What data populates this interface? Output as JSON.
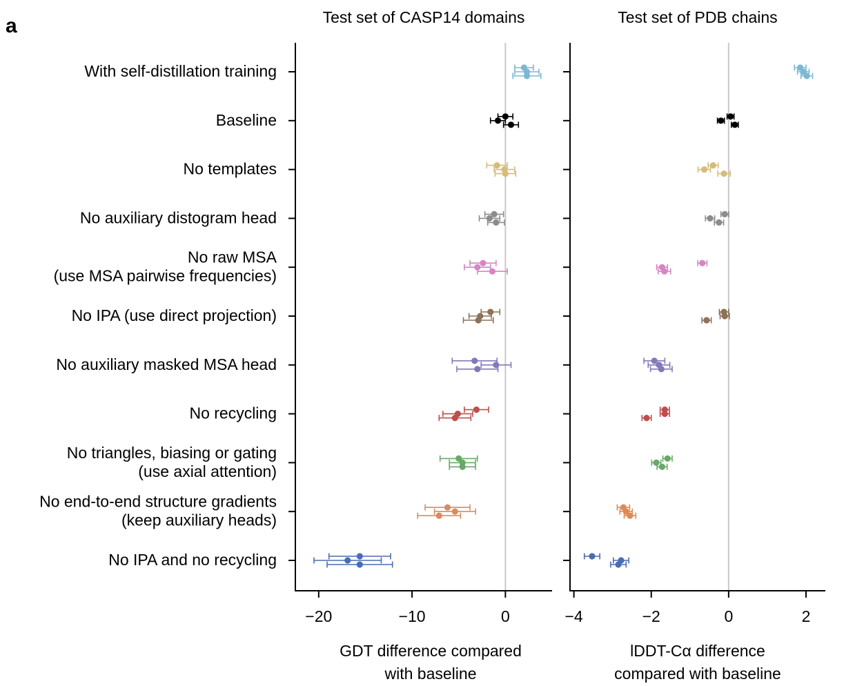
{
  "panel_letter": "a",
  "chart_data": {
    "type": "scatter",
    "categories": [
      "With self-distillation training",
      "Baseline",
      "No templates",
      "No auxiliary distogram head",
      "No raw MSA\n(use MSA pairwise frequencies)",
      "No IPA (use direct projection)",
      "No auxiliary masked MSA head",
      "No recycling",
      "No triangles, biasing or gating\n(use axial attention)",
      "No end-to-end structure gradients\n(keep auxiliary heads)",
      "No IPA and no recycling"
    ],
    "colors": [
      "#7ab8d4",
      "#000000",
      "#d4bd78",
      "#8c8c8c",
      "#d785c4",
      "#8c7258",
      "#8278ba",
      "#bf4d4d",
      "#68a86a",
      "#dd8a56",
      "#4a6cb4"
    ],
    "panels": [
      {
        "title": "Test set of CASP14 domains",
        "xlabel": "GDT difference compared\nwith baseline",
        "xlim": [
          -22.5,
          5
        ],
        "xticks": [
          -20,
          -10,
          0
        ],
        "xtick_labels": [
          "−20",
          "−10",
          "0"
        ],
        "reference_line": 0,
        "points": [
          [
            [
              2.0,
              1.0
            ],
            [
              2.3,
              1.3
            ],
            [
              2.3,
              1.5
            ]
          ],
          [
            [
              0.0,
              0.8
            ],
            [
              -0.8,
              0.8
            ],
            [
              0.6,
              0.8
            ]
          ],
          [
            [
              -0.9,
              1.1
            ],
            [
              -0.1,
              1.1
            ],
            [
              0.0,
              1.1
            ]
          ],
          [
            [
              -1.2,
              1.0
            ],
            [
              -1.7,
              1.1
            ],
            [
              -1.0,
              0.9
            ]
          ],
          [
            [
              -2.4,
              1.4
            ],
            [
              -3.0,
              1.4
            ],
            [
              -1.4,
              1.6
            ]
          ],
          [
            [
              -1.6,
              1.0
            ],
            [
              -2.7,
              1.2
            ],
            [
              -2.9,
              1.6
            ]
          ],
          [
            [
              -3.3,
              2.4
            ],
            [
              -1.0,
              1.6
            ],
            [
              -3.0,
              2.2
            ]
          ],
          [
            [
              -3.1,
              1.3
            ],
            [
              -5.1,
              1.6
            ],
            [
              -5.4,
              1.7
            ]
          ],
          [
            [
              -5.0,
              2.0
            ],
            [
              -4.6,
              1.4
            ],
            [
              -4.6,
              1.4
            ]
          ],
          [
            [
              -6.2,
              2.4
            ],
            [
              -5.4,
              2.2
            ],
            [
              -7.1,
              2.3
            ]
          ],
          [
            [
              -15.6,
              3.3
            ],
            [
              -16.9,
              3.6
            ],
            [
              -15.6,
              3.5
            ]
          ]
        ]
      },
      {
        "title": "Test set of PDB chains",
        "xlabel": "lDDT-Cα difference\ncompared with baseline",
        "xlim": [
          -4.1,
          2.5
        ],
        "xticks": [
          -4,
          -2,
          0,
          2
        ],
        "xtick_labels": [
          "−4",
          "−2",
          "0",
          "2"
        ],
        "reference_line": 0,
        "points": [
          [
            [
              1.85,
              0.15
            ],
            [
              1.93,
              0.15
            ],
            [
              2.02,
              0.15
            ]
          ],
          [
            [
              0.05,
              0.09
            ],
            [
              -0.2,
              0.09
            ],
            [
              0.16,
              0.09
            ]
          ],
          [
            [
              -0.4,
              0.13
            ],
            [
              -0.63,
              0.16
            ],
            [
              -0.12,
              0.16
            ]
          ],
          [
            [
              -0.1,
              0.1
            ],
            [
              -0.48,
              0.12
            ],
            [
              -0.25,
              0.12
            ]
          ],
          [
            [
              -0.68,
              0.12
            ],
            [
              -1.72,
              0.14
            ],
            [
              -1.66,
              0.16
            ]
          ],
          [
            [
              -0.12,
              0.12
            ],
            [
              -0.1,
              0.12
            ],
            [
              -0.57,
              0.12
            ]
          ],
          [
            [
              -1.92,
              0.27
            ],
            [
              -1.8,
              0.28
            ],
            [
              -1.74,
              0.28
            ]
          ],
          [
            [
              -1.65,
              0.12
            ],
            [
              -1.65,
              0.12
            ],
            [
              -2.12,
              0.12
            ]
          ],
          [
            [
              -1.58,
              0.12
            ],
            [
              -1.87,
              0.12
            ],
            [
              -1.72,
              0.13
            ]
          ],
          [
            [
              -2.72,
              0.16
            ],
            [
              -2.65,
              0.16
            ],
            [
              -2.55,
              0.15
            ]
          ],
          [
            [
              -3.53,
              0.2
            ],
            [
              -2.78,
              0.2
            ],
            [
              -2.85,
              0.2
            ]
          ]
        ]
      }
    ]
  }
}
